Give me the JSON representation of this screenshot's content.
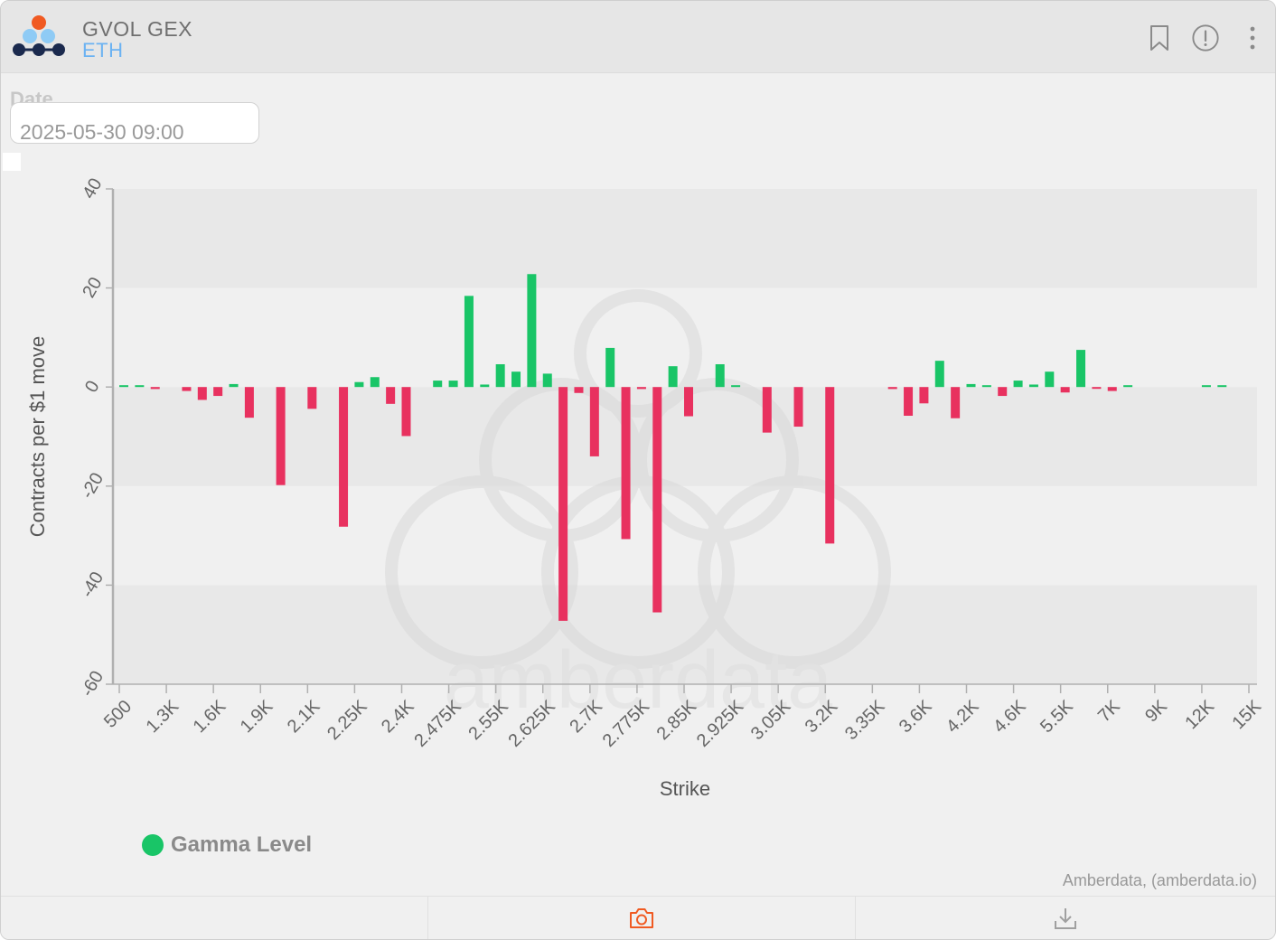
{
  "header": {
    "title": "GVOL GEX",
    "asset": "ETH"
  },
  "date_picker": {
    "label": "Date",
    "value": "2025-05-30 09:00"
  },
  "credits": "Amberdata, (amberdata.io)",
  "watermark": "amberdata",
  "colors": {
    "positive": "#19c567",
    "negative": "#e8315f",
    "accent": "#f05a22",
    "asset": "#6bb2f2"
  },
  "icons": {
    "bookmark": "bookmark-icon",
    "info": "info-icon",
    "more": "more-vertical-icon",
    "camera": "camera-icon",
    "download": "download-icon"
  },
  "chart_data": {
    "type": "bar",
    "title": "",
    "xlabel": "Strike",
    "ylabel": "Contracts per $1 move",
    "ylim": [
      -60,
      40
    ],
    "yticks": [
      40,
      20,
      0,
      -20,
      -40,
      -60
    ],
    "grid": "alternating horizontal bands",
    "legend": {
      "position": "bottom-left",
      "entries": [
        "Gamma Level"
      ]
    },
    "x_tick_labels": [
      "500",
      "1.3K",
      "1.6K",
      "1.9K",
      "2.1K",
      "2.25K",
      "2.4K",
      "2.475K",
      "2.55K",
      "2.625K",
      "2.7K",
      "2.775K",
      "2.85K",
      "2.925K",
      "3.05K",
      "3.2K",
      "3.35K",
      "3.6K",
      "4.2K",
      "4.6K",
      "5.5K",
      "7K",
      "9K",
      "12K",
      "15K"
    ],
    "series": [
      {
        "name": "Gamma Level",
        "values": [
          0.2,
          0.2,
          -0.4,
          0,
          -0.8,
          -2.6,
          -1.8,
          0.6,
          -6.2,
          0,
          -19.8,
          0,
          -4.4,
          0,
          -28.2,
          1.0,
          2.0,
          -3.4,
          -9.9,
          0,
          1.3,
          1.3,
          18.4,
          0.5,
          4.6,
          3.1,
          22.8,
          2.7,
          -47.2,
          -1.2,
          -14.0,
          7.9,
          -30.7,
          -0.4,
          -45.5,
          4.2,
          -5.9,
          0,
          4.6,
          0.2,
          0,
          -9.2,
          0,
          -8.0,
          0,
          -31.6,
          0,
          0,
          0,
          -0.4,
          -5.8,
          -3.3,
          5.3,
          -6.3,
          0.6,
          0.3,
          -1.8,
          1.3,
          0.5,
          3.1,
          -1.1,
          7.5,
          -0.3,
          -0.8,
          0.2,
          0,
          0,
          0,
          0,
          0.2,
          0.2,
          0,
          0,
          0,
          0
        ]
      }
    ]
  }
}
